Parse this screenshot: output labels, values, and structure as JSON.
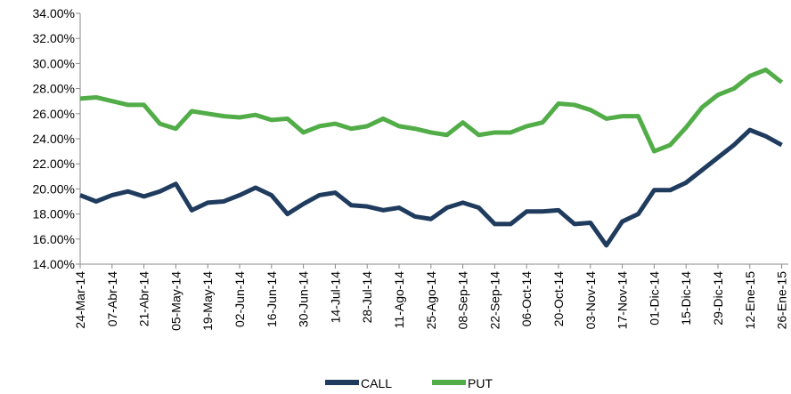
{
  "chart_data": {
    "type": "line",
    "categories": [
      "24-Mar-14",
      null,
      "07-Abr-14",
      null,
      "21-Abr-14",
      null,
      "05-May-14",
      null,
      "19-May-14",
      null,
      "02-Jun-14",
      null,
      "16-Jun-14",
      null,
      "30-Jun-14",
      null,
      "14-Jul-14",
      null,
      "28-Jul-14",
      null,
      "11-Ago-14",
      null,
      "25-Ago-14",
      null,
      "08-Sep-14",
      null,
      "22-Sep-14",
      null,
      "06-Oct-14",
      null,
      "20-Oct-14",
      null,
      "03-Nov-14",
      null,
      "17-Nov-14",
      null,
      "01-Dic-14",
      null,
      "15-Dic-14",
      null,
      "29-Dic-14",
      null,
      "12-Ene-15",
      null,
      "26-Ene-15"
    ],
    "series": [
      {
        "name": "CALL",
        "color": "#1f3b5e",
        "values": [
          19.5,
          19.0,
          19.5,
          19.8,
          19.4,
          19.8,
          20.4,
          18.3,
          18.9,
          19.0,
          19.5,
          20.1,
          19.5,
          18.0,
          18.8,
          19.5,
          19.7,
          18.7,
          18.6,
          18.3,
          18.5,
          17.8,
          17.6,
          18.5,
          18.9,
          18.5,
          17.2,
          17.2,
          18.2,
          18.2,
          18.3,
          17.2,
          17.3,
          15.5,
          17.4,
          18.0,
          19.9,
          19.9,
          20.5,
          21.5,
          22.5,
          23.5,
          24.7,
          24.2,
          23.5
        ]
      },
      {
        "name": "PUT",
        "color": "#52ad48",
        "values": [
          27.2,
          27.3,
          27.0,
          26.7,
          26.7,
          25.2,
          24.8,
          26.2,
          26.0,
          25.8,
          25.7,
          25.9,
          25.5,
          25.6,
          24.5,
          25.0,
          25.2,
          24.8,
          25.0,
          25.6,
          25.0,
          24.8,
          24.5,
          24.3,
          25.3,
          24.3,
          24.5,
          24.5,
          25.0,
          25.3,
          26.8,
          26.7,
          26.3,
          25.6,
          25.8,
          25.8,
          23.0,
          23.5,
          24.9,
          26.5,
          27.5,
          28.0,
          29.0,
          29.5,
          28.5
        ]
      }
    ],
    "ylim": [
      14,
      34
    ],
    "yticks": [
      {
        "value": 14,
        "label": "14.00%"
      },
      {
        "value": 16,
        "label": "16.00%"
      },
      {
        "value": 18,
        "label": "18.00%"
      },
      {
        "value": 20,
        "label": "20.00%"
      },
      {
        "value": 22,
        "label": "22.00%"
      },
      {
        "value": 24,
        "label": "24.00%"
      },
      {
        "value": 26,
        "label": "26.00%"
      },
      {
        "value": 28,
        "label": "28.00%"
      },
      {
        "value": 30,
        "label": "30.00%"
      },
      {
        "value": 32,
        "label": "32.00%"
      },
      {
        "value": 34,
        "label": "34.00%"
      }
    ],
    "grid": false,
    "legend": "bottom"
  }
}
